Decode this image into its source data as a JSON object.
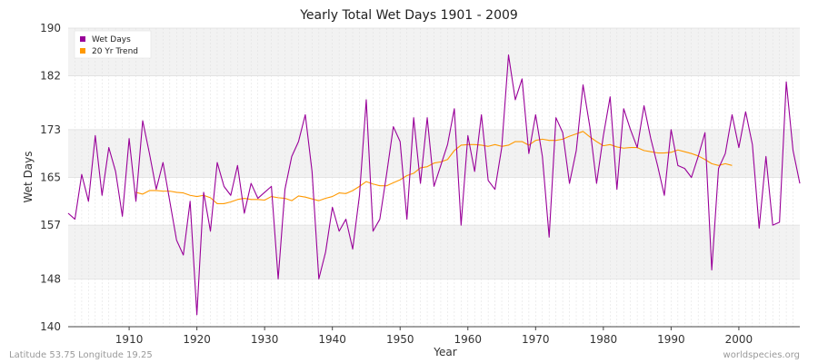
{
  "chart_data": {
    "type": "line",
    "title": "Yearly Total Wet Days 1901 - 2009",
    "xlabel": "Year",
    "ylabel": "Wet Days",
    "xlim": [
      1901,
      2009
    ],
    "ylim": [
      140,
      190
    ],
    "yticks": [
      140,
      148,
      157,
      165,
      173,
      182,
      190
    ],
    "xticks": [
      1910,
      1920,
      1930,
      1940,
      1950,
      1960,
      1970,
      1980,
      1990,
      2000
    ],
    "legend_position": "top-left",
    "series": [
      {
        "name": "Wet Days",
        "color": "#990099",
        "x": [
          1901,
          1902,
          1903,
          1904,
          1905,
          1906,
          1907,
          1908,
          1909,
          1910,
          1911,
          1912,
          1913,
          1914,
          1915,
          1916,
          1917,
          1918,
          1919,
          1920,
          1921,
          1922,
          1923,
          1924,
          1925,
          1926,
          1927,
          1928,
          1929,
          1930,
          1931,
          1932,
          1933,
          1934,
          1935,
          1936,
          1937,
          1938,
          1939,
          1940,
          1941,
          1942,
          1943,
          1944,
          1945,
          1946,
          1947,
          1948,
          1949,
          1950,
          1951,
          1952,
          1953,
          1954,
          1955,
          1956,
          1957,
          1958,
          1959,
          1960,
          1961,
          1962,
          1963,
          1964,
          1965,
          1966,
          1967,
          1968,
          1969,
          1970,
          1971,
          1972,
          1973,
          1974,
          1975,
          1976,
          1977,
          1978,
          1979,
          1980,
          1981,
          1982,
          1983,
          1984,
          1985,
          1986,
          1987,
          1988,
          1989,
          1990,
          1991,
          1992,
          1993,
          1994,
          1995,
          1996,
          1997,
          1998,
          1999,
          2000,
          2001,
          2002,
          2003,
          2004,
          2005,
          2006,
          2007,
          2008,
          2009
        ],
        "values": [
          159,
          158,
          165.5,
          161,
          172,
          162,
          170,
          166,
          158.5,
          171.5,
          161,
          174.5,
          169,
          163,
          167.5,
          161,
          154.5,
          152,
          161,
          142,
          162.5,
          156,
          167.5,
          163.5,
          162,
          167,
          159,
          164,
          161.5,
          162.5,
          163.5,
          148,
          163,
          168.5,
          171,
          175.5,
          166,
          148,
          152.5,
          160,
          156,
          158,
          153,
          162,
          178,
          156,
          158,
          165.5,
          173.5,
          171,
          158,
          175,
          164,
          175,
          163.5,
          167,
          170.5,
          176.5,
          157,
          172,
          166,
          175.5,
          164.5,
          163,
          170,
          185.5,
          178,
          181.5,
          169,
          175.5,
          168.5,
          155,
          175,
          172.5,
          164,
          169.5,
          180.5,
          173.5,
          164,
          172,
          178.5,
          163,
          176.5,
          173,
          170,
          177,
          171.5,
          167,
          162,
          173,
          167,
          166.5,
          165,
          168.5,
          172.5,
          149.5,
          166.5,
          169,
          175.5,
          170,
          176,
          170.5,
          156.5,
          168.5,
          157,
          157.5,
          181,
          169.5,
          164
        ]
      },
      {
        "name": "20 Yr Trend",
        "color": "#ff9900",
        "x": [
          1911,
          1912,
          1913,
          1914,
          1915,
          1916,
          1917,
          1918,
          1919,
          1920,
          1921,
          1922,
          1923,
          1924,
          1925,
          1926,
          1927,
          1928,
          1929,
          1930,
          1931,
          1932,
          1933,
          1934,
          1935,
          1936,
          1937,
          1938,
          1939,
          1940,
          1941,
          1942,
          1943,
          1944,
          1945,
          1946,
          1947,
          1948,
          1949,
          1950,
          1951,
          1952,
          1953,
          1954,
          1955,
          1956,
          1957,
          1958,
          1959,
          1960,
          1961,
          1962,
          1963,
          1964,
          1965,
          1966,
          1967,
          1968,
          1969,
          1970,
          1971,
          1972,
          1973,
          1974,
          1975,
          1976,
          1977,
          1978,
          1979,
          1980,
          1981,
          1982,
          1983,
          1984,
          1985,
          1986,
          1987,
          1988,
          1989,
          1990,
          1991,
          1992,
          1993,
          1994,
          1995,
          1996,
          1997,
          1998,
          1999
        ],
        "values": [
          162.5,
          162.2,
          162.8,
          162.8,
          162.7,
          162.7,
          162.5,
          162.4,
          162.0,
          161.8,
          162.0,
          161.6,
          160.6,
          160.6,
          160.9,
          161.3,
          161.5,
          161.3,
          161.3,
          161.2,
          161.8,
          161.6,
          161.5,
          161.1,
          161.9,
          161.7,
          161.4,
          161.1,
          161.5,
          161.8,
          162.4,
          162.3,
          162.8,
          163.5,
          164.3,
          163.9,
          163.6,
          163.6,
          164.1,
          164.6,
          165.3,
          165.7,
          166.6,
          166.8,
          167.4,
          167.6,
          168.0,
          169.5,
          170.4,
          170.5,
          170.5,
          170.4,
          170.2,
          170.5,
          170.2,
          170.4,
          171.0,
          171.0,
          170.4,
          171.2,
          171.4,
          171.2,
          171.2,
          171.4,
          171.9,
          172.3,
          172.7,
          171.8,
          171.0,
          170.3,
          170.5,
          170.1,
          169.9,
          170.0,
          170.0,
          169.5,
          169.3,
          169.1,
          169.1,
          169.2,
          169.6,
          169.3,
          169.0,
          168.6,
          168.0,
          167.3,
          167.0,
          167.3,
          167.0
        ]
      }
    ]
  },
  "footer": {
    "left": "Latitude 53.75 Longitude 19.25",
    "right": "worldspecies.org"
  }
}
